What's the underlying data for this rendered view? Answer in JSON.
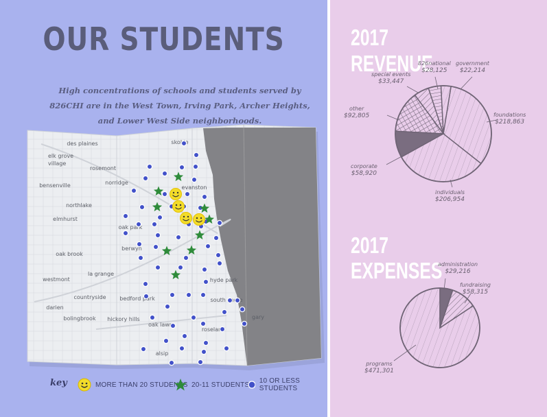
{
  "left": {
    "title": "OUR STUDENTS",
    "subtitle": "High concentrations of schools and students served by 826CHI are in the West Town, Irving Park, Archer Heights, and Lower West Side neighborhoods.",
    "map_labels": [
      "des plaines",
      "skokie",
      "elk grove village",
      "rosemont",
      "bensenville",
      "norridge",
      "evanston",
      "northlake",
      "elmhurst",
      "oak park",
      "berwyn",
      "oak brook",
      "la grange",
      "westmont",
      "countryside",
      "bedford park",
      "darien",
      "bolingbrook",
      "hickory hills",
      "oak lawn",
      "hyde park",
      "south shore",
      "gary",
      "roseland",
      "alsip"
    ],
    "key": {
      "title": "key",
      "items": [
        {
          "icon": "smiley-icon",
          "label": "MORE THAN 20 STUDENTS"
        },
        {
          "icon": "star-icon",
          "label": "20-11 STUDENTS"
        },
        {
          "icon": "dot-icon",
          "label": "10 OR LESS STUDENTS"
        }
      ]
    },
    "colors": {
      "background": "#a9b2ee",
      "smiley": "#f2dc2a",
      "star": "#2e8b3a",
      "dot": "#4251c9"
    }
  },
  "revenue": {
    "title_line1": "2017",
    "title_line2": "REVENUE",
    "slices": [
      {
        "name": "foundations",
        "value": "$218,863",
        "amount": 218863
      },
      {
        "name": "individuals",
        "value": "$206,954",
        "amount": 206954
      },
      {
        "name": "corporate",
        "value": "$58,920",
        "amount": 58920
      },
      {
        "name": "other",
        "value": "$92,805",
        "amount": 92805
      },
      {
        "name": "special events",
        "value": "$33,447",
        "amount": 33447
      },
      {
        "name": "826national",
        "value": "$28,125",
        "amount": 28125
      },
      {
        "name": "government",
        "value": "$22,214",
        "amount": 22214
      }
    ]
  },
  "expenses": {
    "title_line1": "2017",
    "title_line2": "EXPENSES",
    "slices": [
      {
        "name": "programs",
        "value": "$471,301",
        "amount": 471301
      },
      {
        "name": "administration",
        "value": "$29,216",
        "amount": 29216
      },
      {
        "name": "fundraising",
        "value": "$58,315",
        "amount": 58315
      }
    ]
  },
  "chart_colors": {
    "right_background": "#e9cdea",
    "ink": "#6f6475",
    "fill_dark": "#7a6d80"
  }
}
